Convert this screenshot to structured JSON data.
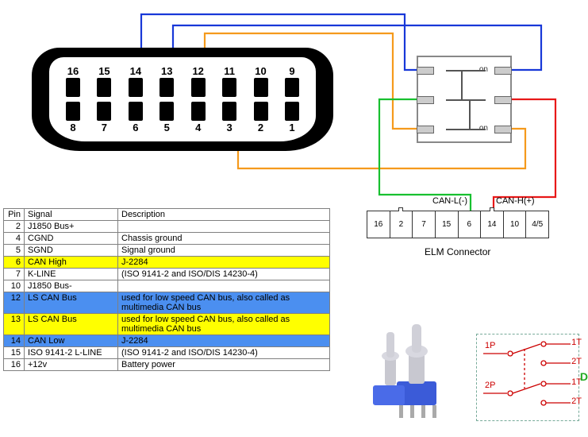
{
  "obd": {
    "top_pins": [
      "9",
      "10",
      "11",
      "12",
      "13",
      "14",
      "15",
      "16"
    ],
    "bottom_pins": [
      "1",
      "2",
      "3",
      "4",
      "5",
      "6",
      "7",
      "8"
    ]
  },
  "switch": {
    "label_top": "on",
    "label_bottom": "on"
  },
  "elm": {
    "pins": [
      "16",
      "2",
      "7",
      "15",
      "6",
      "14",
      "10",
      "4/5"
    ],
    "title": "ELM Connector",
    "can_l": "CAN-L(-)",
    "can_h": "CAN-H(+)"
  },
  "wires": {
    "blue": "#1838d8",
    "orange": "#f59a1c",
    "green": "#18c030",
    "red": "#e81818",
    "width": 2.2
  },
  "table": {
    "headers": [
      "Pin",
      "Signal",
      "Description"
    ],
    "rows": [
      {
        "pin": "2",
        "signal": "J1850 Bus+",
        "desc": "",
        "hl": ""
      },
      {
        "pin": "4",
        "signal": "CGND",
        "desc": "Chassis ground",
        "hl": ""
      },
      {
        "pin": "5",
        "signal": "SGND",
        "desc": "Signal ground",
        "hl": ""
      },
      {
        "pin": "6",
        "signal": "CAN High",
        "desc": "J-2284",
        "hl": "yellow"
      },
      {
        "pin": "7",
        "signal": "K-LINE",
        "desc": "(ISO 9141-2 and ISO/DIS 14230-4)",
        "hl": ""
      },
      {
        "pin": "10",
        "signal": "J1850 Bus-",
        "desc": "",
        "hl": ""
      },
      {
        "pin": "12",
        "signal": "LS CAN Bus",
        "desc": "used for low speed CAN bus, also called as multimedia CAN bus",
        "hl": "blue"
      },
      {
        "pin": "13",
        "signal": "LS CAN Bus",
        "desc": "used for low speed CAN bus, also called as multimedia CAN bus",
        "hl": "yellow"
      },
      {
        "pin": "14",
        "signal": "CAN Low",
        "desc": "J-2284",
        "hl": "blue"
      },
      {
        "pin": "15",
        "signal": "ISO 9141-2 L-LINE",
        "desc": "(ISO 9141-2 and ISO/DIS 14230-4)",
        "hl": ""
      },
      {
        "pin": "16",
        "signal": "+12v",
        "desc": "Battery power",
        "hl": ""
      }
    ]
  },
  "dpdt": {
    "p1": "1P",
    "p2": "2P",
    "t1": "1T",
    "t2": "2T",
    "label": "DPDT"
  }
}
